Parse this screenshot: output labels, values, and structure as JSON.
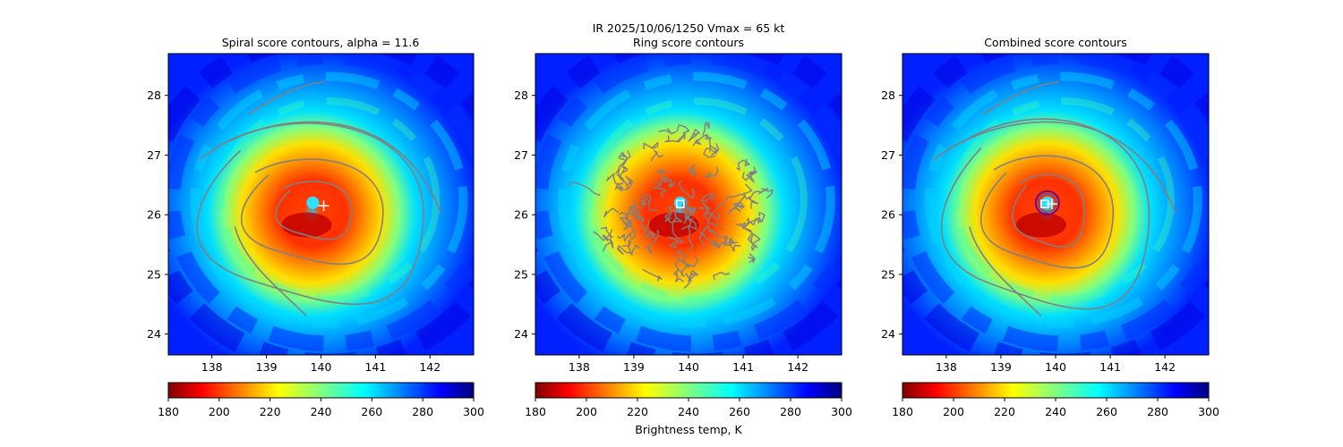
{
  "figure": {
    "suptitle_line1": "IR  2025/10/06/1250    Vmax = 65 kt"
  },
  "chart_data": [
    {
      "type": "heatmap",
      "title": "Spiral score contours, alpha = 11.6",
      "xlim": [
        137.2,
        142.8
      ],
      "ylim": [
        23.65,
        28.7
      ],
      "xticks": [
        "138",
        "139",
        "140",
        "141",
        "142"
      ],
      "yticks": [
        "24",
        "25",
        "26",
        "27",
        "28"
      ],
      "center_lon": 139.9,
      "center_lat": 26.1,
      "marker": "cross",
      "marker_lon": 140.05,
      "marker_lat": 26.15,
      "contours": "spiral",
      "colorbar_ticks": [
        "180",
        "200",
        "220",
        "240",
        "260",
        "280",
        "300"
      ],
      "colorbar_label": ""
    },
    {
      "type": "heatmap",
      "title": "Ring score contours",
      "xlim": [
        137.2,
        142.8
      ],
      "ylim": [
        23.65,
        28.7
      ],
      "xticks": [
        "138",
        "139",
        "140",
        "141",
        "142"
      ],
      "yticks": [
        "24",
        "25",
        "26",
        "27",
        "28"
      ],
      "center_lon": 139.9,
      "center_lat": 26.1,
      "marker": "square",
      "marker_lon": 139.85,
      "marker_lat": 26.18,
      "contours": "ring",
      "colorbar_ticks": [
        "180",
        "200",
        "220",
        "240",
        "260",
        "280",
        "300"
      ],
      "colorbar_label": "Brightness temp, K"
    },
    {
      "type": "heatmap",
      "title": "Combined score contours",
      "xlim": [
        137.2,
        142.8
      ],
      "ylim": [
        23.65,
        28.7
      ],
      "xticks": [
        "138",
        "139",
        "140",
        "141",
        "142"
      ],
      "yticks": [
        "24",
        "25",
        "26",
        "27",
        "28"
      ],
      "center_lon": 139.9,
      "center_lat": 26.1,
      "marker": "square-cross",
      "marker_lon": 139.8,
      "marker_lat": 26.18,
      "contours": "combined",
      "colorbar_ticks": [
        "180",
        "200",
        "220",
        "240",
        "260",
        "280",
        "300"
      ],
      "colorbar_label": ""
    }
  ],
  "colors": {
    "contour": "#808080",
    "marker": "#ffffff",
    "ring_circle": "#800080",
    "jet": [
      "#800000",
      "#ff0000",
      "#ff8000",
      "#ffff00",
      "#80ff80",
      "#00ffff",
      "#0080ff",
      "#0000ff",
      "#000080"
    ]
  }
}
